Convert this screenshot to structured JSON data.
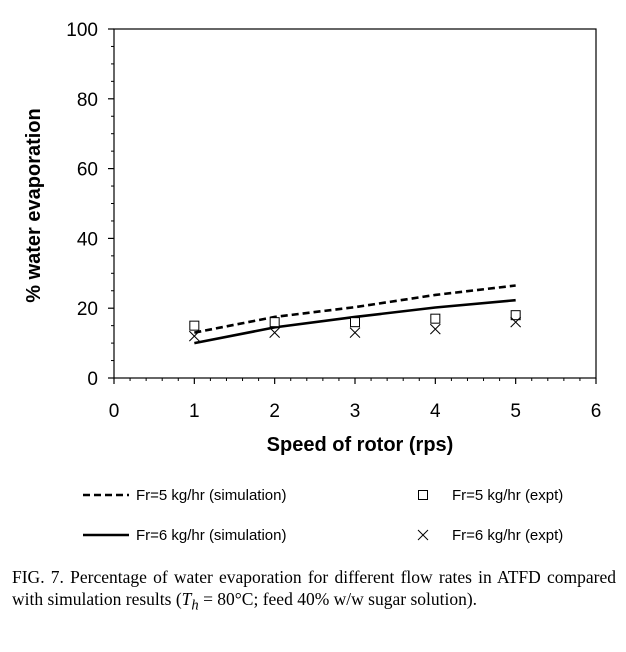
{
  "chart_data": {
    "type": "line",
    "xlabel": "Speed of rotor (rps)",
    "ylabel": "% water evaporation",
    "xlim": [
      0,
      6
    ],
    "ylim": [
      0,
      100
    ],
    "x_ticks": [
      "0",
      "1",
      "2",
      "3",
      "4",
      "5",
      "6"
    ],
    "y_ticks": [
      "0",
      "20",
      "40",
      "60",
      "80",
      "100"
    ],
    "grid": false,
    "legend_position": "bottom",
    "series": [
      {
        "name": "Fr=5 kg/hr (simulation)",
        "style": "dashed-line",
        "x": [
          1,
          2,
          3,
          4,
          5
        ],
        "y": [
          13,
          17.5,
          20.3,
          23.8,
          26.5
        ]
      },
      {
        "name": "Fr=6 kg/hr (simulation)",
        "style": "solid-line",
        "x": [
          1,
          2,
          3,
          4,
          5
        ],
        "y": [
          10,
          14.5,
          17.5,
          20.2,
          22.3
        ]
      },
      {
        "name": "Fr=5 kg/hr (expt)",
        "style": "square-marker",
        "x": [
          1,
          2,
          3,
          4,
          5
        ],
        "y": [
          15,
          16,
          16,
          17,
          18
        ]
      },
      {
        "name": "Fr=6 kg/hr (expt)",
        "style": "x-marker",
        "x": [
          1,
          2,
          3,
          4,
          5
        ],
        "y": [
          12,
          13,
          13,
          14,
          16
        ]
      }
    ]
  },
  "caption": {
    "text": "FIG. 7.  Percentage of water evaporation for different flow rates in ATFD compared with simulation results (",
    "var_main": "T",
    "var_sub": "h",
    "text_after": " = 80°C; feed 40% w/w sugar solution)."
  }
}
